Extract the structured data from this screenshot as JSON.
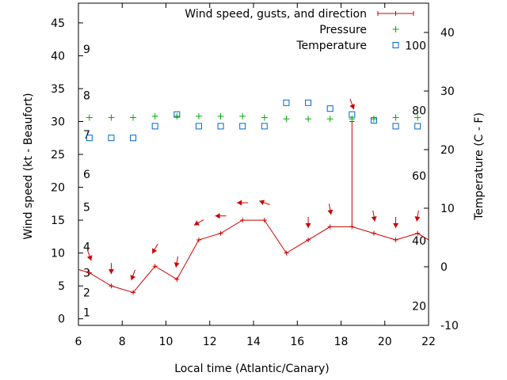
{
  "chart_data": {
    "type": "line",
    "xlabel": "Local time (Atlantic/Canary)",
    "ylabel": "Wind speed (kt - Beaufort)",
    "y2label": "Temperature (C - F)",
    "xlim": [
      6,
      22
    ],
    "ylim": [
      -1,
      48
    ],
    "y2lim": [
      -10,
      45
    ],
    "x_ticks": [
      "6",
      "8",
      "10",
      "12",
      "14",
      "16",
      "18",
      "20",
      "22"
    ],
    "y_ticks": [
      "0",
      "5",
      "10",
      "15",
      "20",
      "25",
      "30",
      "35",
      "40",
      "45"
    ],
    "y2_ticks": [
      "-10",
      "0",
      "10",
      "20",
      "30",
      "40"
    ],
    "beaufort_labels": [
      "1",
      "2",
      "3",
      "4",
      "5",
      "6",
      "7",
      "8",
      "9"
    ],
    "beaufort_values": [
      1,
      2,
      3,
      4,
      5,
      6,
      7,
      8,
      9
    ],
    "beaufort_kt": [
      1,
      4,
      7,
      11,
      17,
      22,
      28,
      34,
      41
    ],
    "fahrenheit_labels": [
      "20",
      "40",
      "60",
      "80",
      "100"
    ],
    "fahrenheit_values": [
      20,
      40,
      60,
      80,
      100
    ],
    "series": [
      {
        "name": "Wind speed, gusts, and direction",
        "color": "#cc0000",
        "x": [
          6,
          6.5,
          7.5,
          8.5,
          9.5,
          10.5,
          11.5,
          12.5,
          13.5,
          14.5,
          15.5,
          16.5,
          17.5,
          18.5,
          19.5,
          20.5,
          21.5,
          22
        ],
        "values": [
          7.5,
          7,
          5,
          4,
          8,
          6,
          12,
          13,
          15,
          15,
          10,
          12,
          14,
          14,
          13,
          12,
          13,
          12
        ],
        "gust": [
          null,
          null,
          null,
          null,
          null,
          null,
          null,
          null,
          null,
          null,
          null,
          null,
          null,
          30,
          null,
          null,
          null,
          null
        ],
        "direction_deg": [
          null,
          340,
          0,
          20,
          30,
          10,
          60,
          90,
          90,
          110,
          null,
          0,
          350,
          340,
          350,
          0,
          10,
          null
        ]
      },
      {
        "name": "Pressure",
        "color": "#00aa00",
        "x": [
          6.5,
          7.5,
          8.5,
          9.5,
          10.5,
          11.5,
          12.5,
          13.5,
          14.5,
          15.5,
          16.5,
          17.5,
          18.5,
          19.5,
          20.5,
          21.5
        ],
        "values": [
          30.6,
          30.6,
          30.6,
          30.8,
          30.8,
          30.8,
          30.8,
          30.8,
          30.6,
          30.4,
          30.4,
          30.4,
          30.4,
          30.4,
          30.6,
          30.6
        ]
      },
      {
        "name": "Temperature",
        "color": "#0066cc",
        "x": [
          6.5,
          7.5,
          8.5,
          9.5,
          10.5,
          11.5,
          12.5,
          13.5,
          14.5,
          15.5,
          16.5,
          17.5,
          18.5,
          19.5,
          20.5,
          21.5
        ],
        "values": [
          22,
          22,
          22,
          24,
          26,
          24,
          24,
          24,
          24,
          28,
          28,
          27,
          26,
          25,
          24,
          24
        ]
      }
    ],
    "legend_position": "top-right",
    "grid": false
  }
}
